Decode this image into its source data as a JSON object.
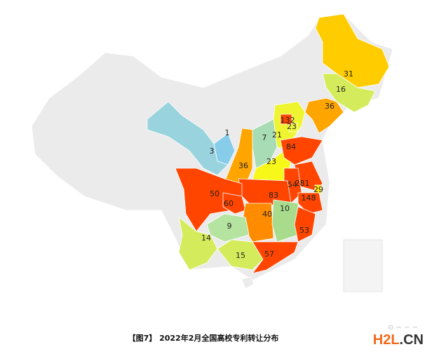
{
  "caption": "【图7】 2022年2月全国高校专利转让分布",
  "watermark": {
    "logo_a": "H2L",
    "logo_b": ".CN"
  },
  "colors": {
    "no_data": "#ebebeb",
    "border": "#ffffff",
    "text": "#222222"
  },
  "regions": [
    {
      "id": "heilongjiang",
      "value": "31",
      "color": "#ffcc00"
    },
    {
      "id": "jilin",
      "value": "16",
      "color": "#d4ec5c"
    },
    {
      "id": "liaoning",
      "value": "36",
      "color": "#ffa500"
    },
    {
      "id": "hebei",
      "value": "21",
      "color": "#eef530"
    },
    {
      "id": "tianjin",
      "value": "23",
      "color": "#eef530"
    },
    {
      "id": "beijing",
      "value": "132",
      "color": "#ff4500"
    },
    {
      "id": "shanxi",
      "value": "7",
      "color": "#a8dcb4"
    },
    {
      "id": "shaanxi",
      "value": "36",
      "color": "#ffa500"
    },
    {
      "id": "ningxia",
      "value": "1",
      "color": "#87cdea"
    },
    {
      "id": "gansu",
      "value": "3",
      "color": "#99d3de"
    },
    {
      "id": "henan",
      "value": "23",
      "color": "#f7f71a"
    },
    {
      "id": "shandong",
      "value": "84",
      "color": "#ff4500"
    },
    {
      "id": "jiangsu",
      "value": "281",
      "color": "#ff4500"
    },
    {
      "id": "anhui",
      "value": "54",
      "color": "#ff4500"
    },
    {
      "id": "shanghai",
      "value": "29",
      "color": "#ffe600"
    },
    {
      "id": "zhejiang",
      "value": "148",
      "color": "#ff4500"
    },
    {
      "id": "hubei",
      "value": "83",
      "color": "#ff4500"
    },
    {
      "id": "sichuan",
      "value": "50",
      "color": "#ff4500"
    },
    {
      "id": "chongqing",
      "value": "60",
      "color": "#ff4500"
    },
    {
      "id": "hunan",
      "value": "40",
      "color": "#ff8c00"
    },
    {
      "id": "jiangxi",
      "value": "10",
      "color": "#a8dc8c"
    },
    {
      "id": "fujian",
      "value": "53",
      "color": "#ff4500"
    },
    {
      "id": "guizhou",
      "value": "9",
      "color": "#b5e3a0"
    },
    {
      "id": "yunnan",
      "value": "14",
      "color": "#d4ec5c"
    },
    {
      "id": "guangxi",
      "value": "15",
      "color": "#d4ec5c"
    },
    {
      "id": "guangdong",
      "value": "57",
      "color": "#ff4500"
    }
  ]
}
